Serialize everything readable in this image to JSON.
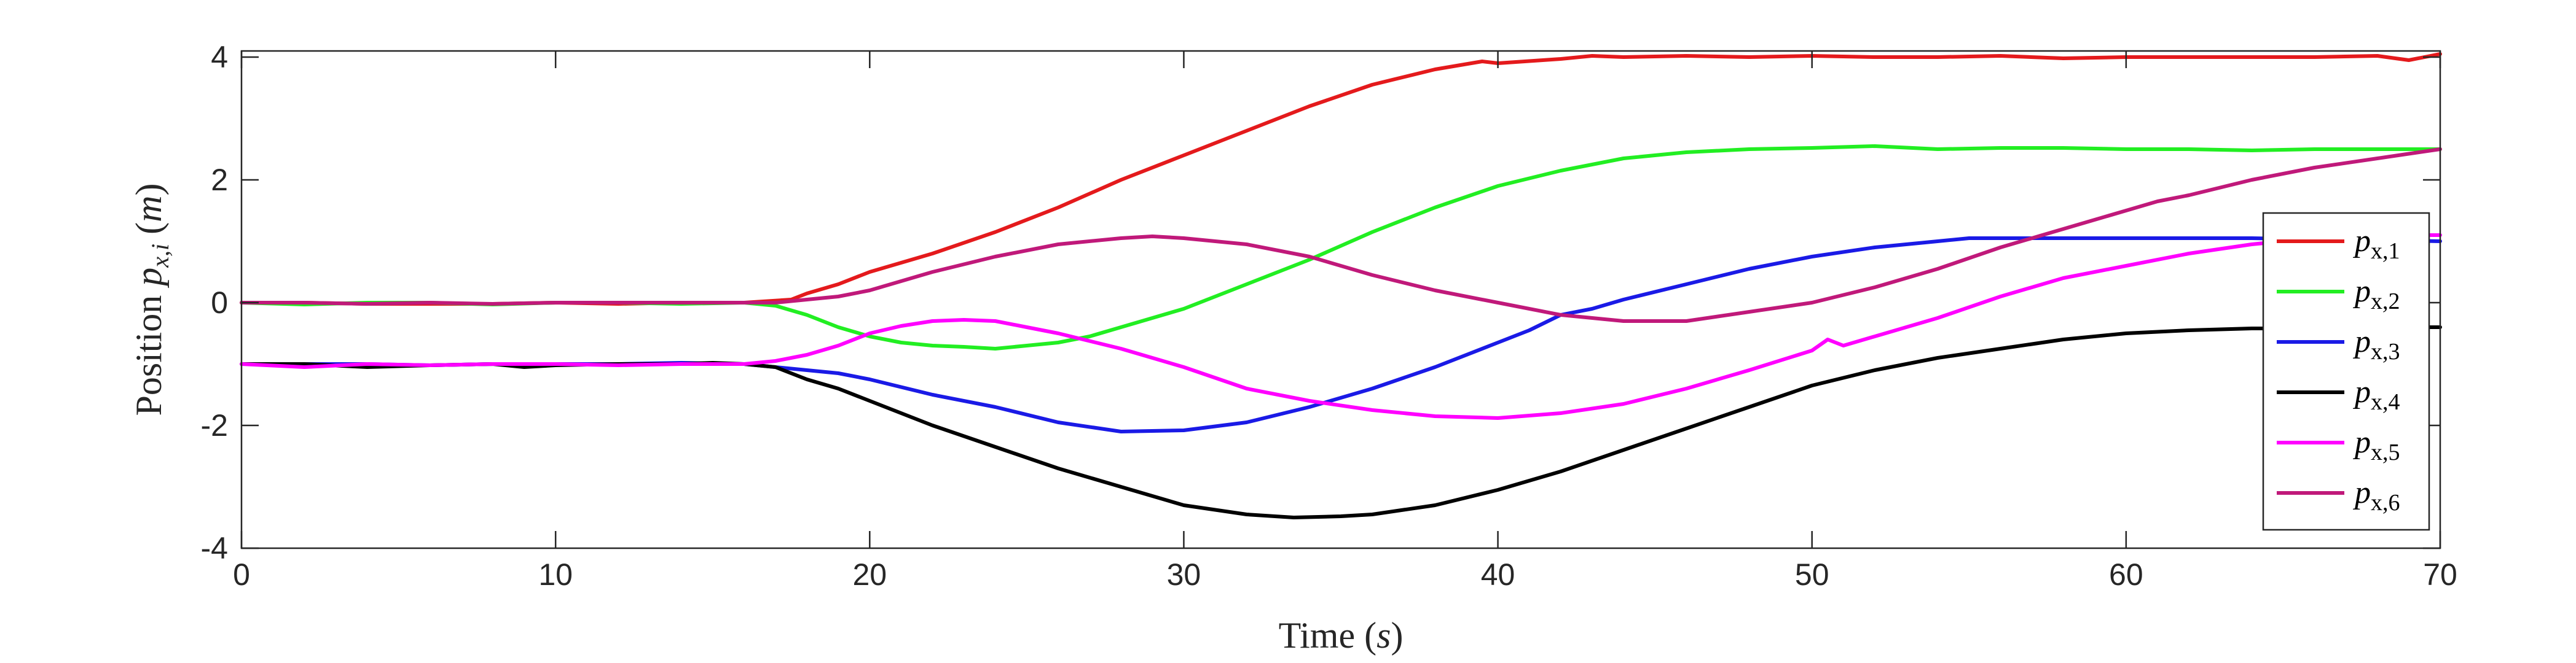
{
  "chart_data": {
    "type": "line",
    "title": "",
    "xlabel_parts": {
      "text": "Time (",
      "var": "s",
      "close": ")"
    },
    "ylabel_parts": {
      "text": "Position ",
      "var": "p",
      "sub": "x,i",
      "unit_open": " (",
      "unit": "m",
      "unit_close": ")"
    },
    "xlim": [
      0,
      70
    ],
    "ylim": [
      -4,
      4.1
    ],
    "xticks": [
      0,
      10,
      20,
      30,
      40,
      50,
      60,
      70
    ],
    "xtick_labels": [
      "0",
      "10",
      "20",
      "30",
      "40",
      "50",
      "60",
      "70"
    ],
    "yticks": [
      -4,
      -2,
      0,
      2,
      4
    ],
    "ytick_labels": [
      "-4",
      "-2",
      "0",
      "2",
      "4"
    ],
    "grid": false,
    "legend_position": "right",
    "series": [
      {
        "name": "p_{x,1}",
        "legend_var": "p",
        "legend_sub": "x,1",
        "color": "#e41a1c",
        "points": [
          [
            0,
            0
          ],
          [
            2,
            0
          ],
          [
            4,
            -0.02
          ],
          [
            6,
            -0.02
          ],
          [
            8,
            -0.02
          ],
          [
            10,
            0
          ],
          [
            12,
            -0.02
          ],
          [
            14,
            0
          ],
          [
            16,
            0
          ],
          [
            17.5,
            0.05
          ],
          [
            18,
            0.15
          ],
          [
            19,
            0.3
          ],
          [
            20,
            0.5
          ],
          [
            22,
            0.8
          ],
          [
            24,
            1.15
          ],
          [
            26,
            1.55
          ],
          [
            28,
            2.0
          ],
          [
            30,
            2.4
          ],
          [
            32,
            2.8
          ],
          [
            34,
            3.2
          ],
          [
            36,
            3.55
          ],
          [
            38,
            3.8
          ],
          [
            39.5,
            3.93
          ],
          [
            40,
            3.9
          ],
          [
            42,
            3.97
          ],
          [
            43,
            4.02
          ],
          [
            44,
            4.0
          ],
          [
            46,
            4.02
          ],
          [
            48,
            4.0
          ],
          [
            50,
            4.02
          ],
          [
            52,
            4.0
          ],
          [
            54,
            4.0
          ],
          [
            56,
            4.02
          ],
          [
            58,
            3.98
          ],
          [
            60,
            4.0
          ],
          [
            62,
            4.0
          ],
          [
            64,
            4.0
          ],
          [
            66,
            4.0
          ],
          [
            68,
            4.02
          ],
          [
            69,
            3.95
          ],
          [
            70,
            4.05
          ]
        ]
      },
      {
        "name": "p_{x,2}",
        "legend_var": "p",
        "legend_sub": "x,2",
        "color": "#22ee22",
        "points": [
          [
            0,
            0
          ],
          [
            2,
            -0.03
          ],
          [
            4,
            0
          ],
          [
            6,
            0
          ],
          [
            8,
            -0.03
          ],
          [
            10,
            0
          ],
          [
            12,
            0
          ],
          [
            14,
            -0.02
          ],
          [
            16,
            0
          ],
          [
            17,
            -0.05
          ],
          [
            18,
            -0.2
          ],
          [
            19,
            -0.4
          ],
          [
            20,
            -0.55
          ],
          [
            21,
            -0.65
          ],
          [
            22,
            -0.7
          ],
          [
            23,
            -0.72
          ],
          [
            24,
            -0.75
          ],
          [
            25,
            -0.7
          ],
          [
            26,
            -0.65
          ],
          [
            27,
            -0.55
          ],
          [
            28,
            -0.4
          ],
          [
            30,
            -0.1
          ],
          [
            32,
            0.3
          ],
          [
            34,
            0.7
          ],
          [
            36,
            1.15
          ],
          [
            38,
            1.55
          ],
          [
            40,
            1.9
          ],
          [
            42,
            2.15
          ],
          [
            44,
            2.35
          ],
          [
            46,
            2.45
          ],
          [
            48,
            2.5
          ],
          [
            50,
            2.52
          ],
          [
            52,
            2.55
          ],
          [
            54,
            2.5
          ],
          [
            56,
            2.52
          ],
          [
            58,
            2.52
          ],
          [
            60,
            2.5
          ],
          [
            62,
            2.5
          ],
          [
            64,
            2.48
          ],
          [
            66,
            2.5
          ],
          [
            68,
            2.5
          ],
          [
            70,
            2.5
          ]
        ]
      },
      {
        "name": "p_{x,3}",
        "legend_var": "p",
        "legend_sub": "x,3",
        "color": "#1a1ae6",
        "points": [
          [
            0,
            -1.0
          ],
          [
            2,
            -1.0
          ],
          [
            4,
            -1.0
          ],
          [
            6,
            -1.02
          ],
          [
            8,
            -1.0
          ],
          [
            10,
            -1.0
          ],
          [
            12,
            -1.0
          ],
          [
            14,
            -0.98
          ],
          [
            16,
            -1.0
          ],
          [
            17,
            -1.05
          ],
          [
            18,
            -1.1
          ],
          [
            19,
            -1.15
          ],
          [
            20,
            -1.25
          ],
          [
            22,
            -1.5
          ],
          [
            24,
            -1.7
          ],
          [
            26,
            -1.95
          ],
          [
            28,
            -2.1
          ],
          [
            30,
            -2.08
          ],
          [
            32,
            -1.95
          ],
          [
            34,
            -1.7
          ],
          [
            36,
            -1.4
          ],
          [
            38,
            -1.05
          ],
          [
            40,
            -0.65
          ],
          [
            41,
            -0.45
          ],
          [
            42,
            -0.2
          ],
          [
            43,
            -0.1
          ],
          [
            44,
            0.05
          ],
          [
            46,
            0.3
          ],
          [
            48,
            0.55
          ],
          [
            50,
            0.75
          ],
          [
            52,
            0.9
          ],
          [
            54,
            1.0
          ],
          [
            55,
            1.05
          ],
          [
            56,
            1.05
          ],
          [
            58,
            1.05
          ],
          [
            60,
            1.05
          ],
          [
            62,
            1.05
          ],
          [
            64,
            1.05
          ],
          [
            66,
            1.03
          ],
          [
            68,
            1.02
          ],
          [
            70,
            1.0
          ]
        ]
      },
      {
        "name": "p_{x,4}",
        "legend_var": "p",
        "legend_sub": "x,4",
        "color": "#000000",
        "points": [
          [
            0,
            -1.0
          ],
          [
            2,
            -1.0
          ],
          [
            4,
            -1.05
          ],
          [
            6,
            -1.02
          ],
          [
            8,
            -1.0
          ],
          [
            9,
            -1.05
          ],
          [
            10,
            -1.02
          ],
          [
            12,
            -1.0
          ],
          [
            14,
            -1.0
          ],
          [
            15,
            -0.98
          ],
          [
            16,
            -1.0
          ],
          [
            17,
            -1.05
          ],
          [
            18,
            -1.25
          ],
          [
            19,
            -1.4
          ],
          [
            20,
            -1.6
          ],
          [
            22,
            -2.0
          ],
          [
            24,
            -2.35
          ],
          [
            26,
            -2.7
          ],
          [
            28,
            -3.0
          ],
          [
            30,
            -3.3
          ],
          [
            32,
            -3.45
          ],
          [
            33.5,
            -3.5
          ],
          [
            35,
            -3.48
          ],
          [
            36,
            -3.45
          ],
          [
            38,
            -3.3
          ],
          [
            40,
            -3.05
          ],
          [
            42,
            -2.75
          ],
          [
            44,
            -2.4
          ],
          [
            46,
            -2.05
          ],
          [
            48,
            -1.7
          ],
          [
            50,
            -1.35
          ],
          [
            52,
            -1.1
          ],
          [
            54,
            -0.9
          ],
          [
            56,
            -0.75
          ],
          [
            58,
            -0.6
          ],
          [
            60,
            -0.5
          ],
          [
            62,
            -0.45
          ],
          [
            64,
            -0.42
          ],
          [
            66,
            -0.42
          ],
          [
            68,
            -0.4
          ],
          [
            70,
            -0.4
          ]
        ]
      },
      {
        "name": "p_{x,5}",
        "legend_var": "p",
        "legend_sub": "x,5",
        "color": "#ff00ff",
        "points": [
          [
            0,
            -1.0
          ],
          [
            2,
            -1.05
          ],
          [
            4,
            -1.0
          ],
          [
            6,
            -1.02
          ],
          [
            8,
            -1.0
          ],
          [
            10,
            -1.0
          ],
          [
            12,
            -1.02
          ],
          [
            14,
            -1.0
          ],
          [
            16,
            -1.0
          ],
          [
            17,
            -0.95
          ],
          [
            18,
            -0.85
          ],
          [
            19,
            -0.7
          ],
          [
            20,
            -0.5
          ],
          [
            21,
            -0.38
          ],
          [
            22,
            -0.3
          ],
          [
            23,
            -0.28
          ],
          [
            24,
            -0.3
          ],
          [
            25,
            -0.4
          ],
          [
            26,
            -0.5
          ],
          [
            28,
            -0.75
          ],
          [
            30,
            -1.05
          ],
          [
            32,
            -1.4
          ],
          [
            34,
            -1.6
          ],
          [
            36,
            -1.75
          ],
          [
            38,
            -1.85
          ],
          [
            40,
            -1.88
          ],
          [
            42,
            -1.8
          ],
          [
            44,
            -1.65
          ],
          [
            46,
            -1.4
          ],
          [
            48,
            -1.1
          ],
          [
            50,
            -0.78
          ],
          [
            50.5,
            -0.6
          ],
          [
            51,
            -0.7
          ],
          [
            52,
            -0.55
          ],
          [
            54,
            -0.25
          ],
          [
            56,
            0.1
          ],
          [
            58,
            0.4
          ],
          [
            60,
            0.6
          ],
          [
            62,
            0.8
          ],
          [
            64,
            0.95
          ],
          [
            66,
            1.05
          ],
          [
            68,
            1.1
          ],
          [
            70,
            1.1
          ]
        ]
      },
      {
        "name": "p_{x,6}",
        "legend_var": "p",
        "legend_sub": "x,6",
        "color": "#c0197a",
        "points": [
          [
            0,
            0
          ],
          [
            2,
            0
          ],
          [
            4,
            -0.02
          ],
          [
            6,
            0
          ],
          [
            8,
            -0.02
          ],
          [
            10,
            0
          ],
          [
            12,
            0
          ],
          [
            14,
            0
          ],
          [
            16,
            0
          ],
          [
            17,
            0
          ],
          [
            18,
            0.05
          ],
          [
            19,
            0.1
          ],
          [
            20,
            0.2
          ],
          [
            22,
            0.5
          ],
          [
            24,
            0.75
          ],
          [
            26,
            0.95
          ],
          [
            28,
            1.05
          ],
          [
            29,
            1.08
          ],
          [
            30,
            1.05
          ],
          [
            32,
            0.95
          ],
          [
            34,
            0.75
          ],
          [
            36,
            0.45
          ],
          [
            38,
            0.2
          ],
          [
            40,
            0.0
          ],
          [
            42,
            -0.2
          ],
          [
            44,
            -0.3
          ],
          [
            46,
            -0.3
          ],
          [
            48,
            -0.15
          ],
          [
            50,
            0.0
          ],
          [
            52,
            0.25
          ],
          [
            54,
            0.55
          ],
          [
            56,
            0.9
          ],
          [
            58,
            1.2
          ],
          [
            60,
            1.5
          ],
          [
            61,
            1.65
          ],
          [
            62,
            1.75
          ],
          [
            64,
            2.0
          ],
          [
            66,
            2.2
          ],
          [
            68,
            2.35
          ],
          [
            70,
            2.5
          ]
        ]
      }
    ]
  }
}
